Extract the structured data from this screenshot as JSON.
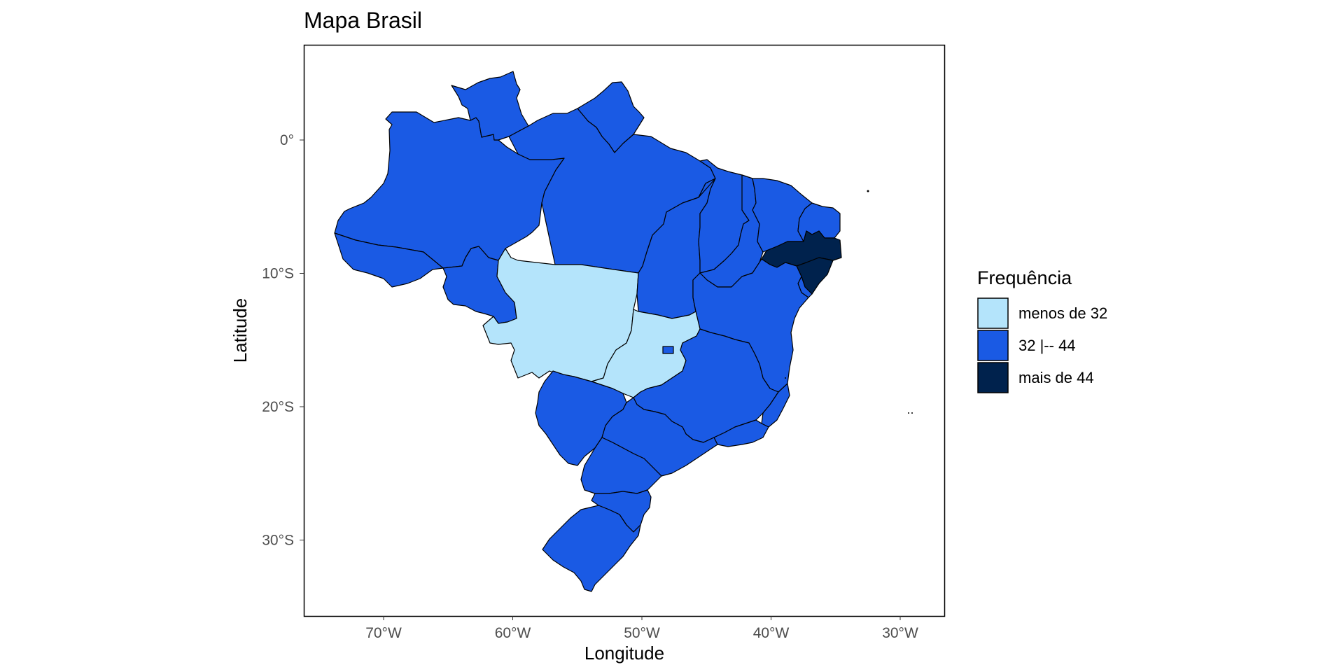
{
  "title": "Mapa Brasil",
  "x_axis": {
    "title": "Longitude",
    "ticks": [
      "70°W",
      "60°W",
      "50°W",
      "40°W",
      "30°W"
    ]
  },
  "y_axis": {
    "title": "Latitude",
    "ticks": [
      "0°",
      "10°S",
      "20°S",
      "30°S"
    ]
  },
  "legend": {
    "title": "Frequência",
    "items": [
      {
        "label": "menos de 32",
        "color": "#b4e4fb"
      },
      {
        "label": "32 |-- 44",
        "color": "#1a5ae4"
      },
      {
        "label": "mais de 44",
        "color": "#00224d"
      }
    ]
  },
  "chart_data": {
    "type": "choropleth",
    "title": "Mapa Brasil",
    "xlabel": "Longitude",
    "ylabel": "Latitude",
    "classes": [
      "menos de 32",
      "32 |-- 44",
      "mais de 44"
    ],
    "regions_by_class": {
      "menos de 32": [
        "MT",
        "GO"
      ],
      "32 |-- 44": [
        "AM",
        "RR",
        "AP",
        "PA",
        "AC",
        "RO",
        "TO",
        "MA",
        "PI",
        "CE",
        "RN",
        "BA",
        "MG",
        "ES",
        "RJ",
        "SP",
        "PR",
        "SC",
        "RS",
        "MS",
        "DF",
        "SE"
      ],
      "mais de 44": [
        "PE",
        "AL"
      ]
    }
  }
}
